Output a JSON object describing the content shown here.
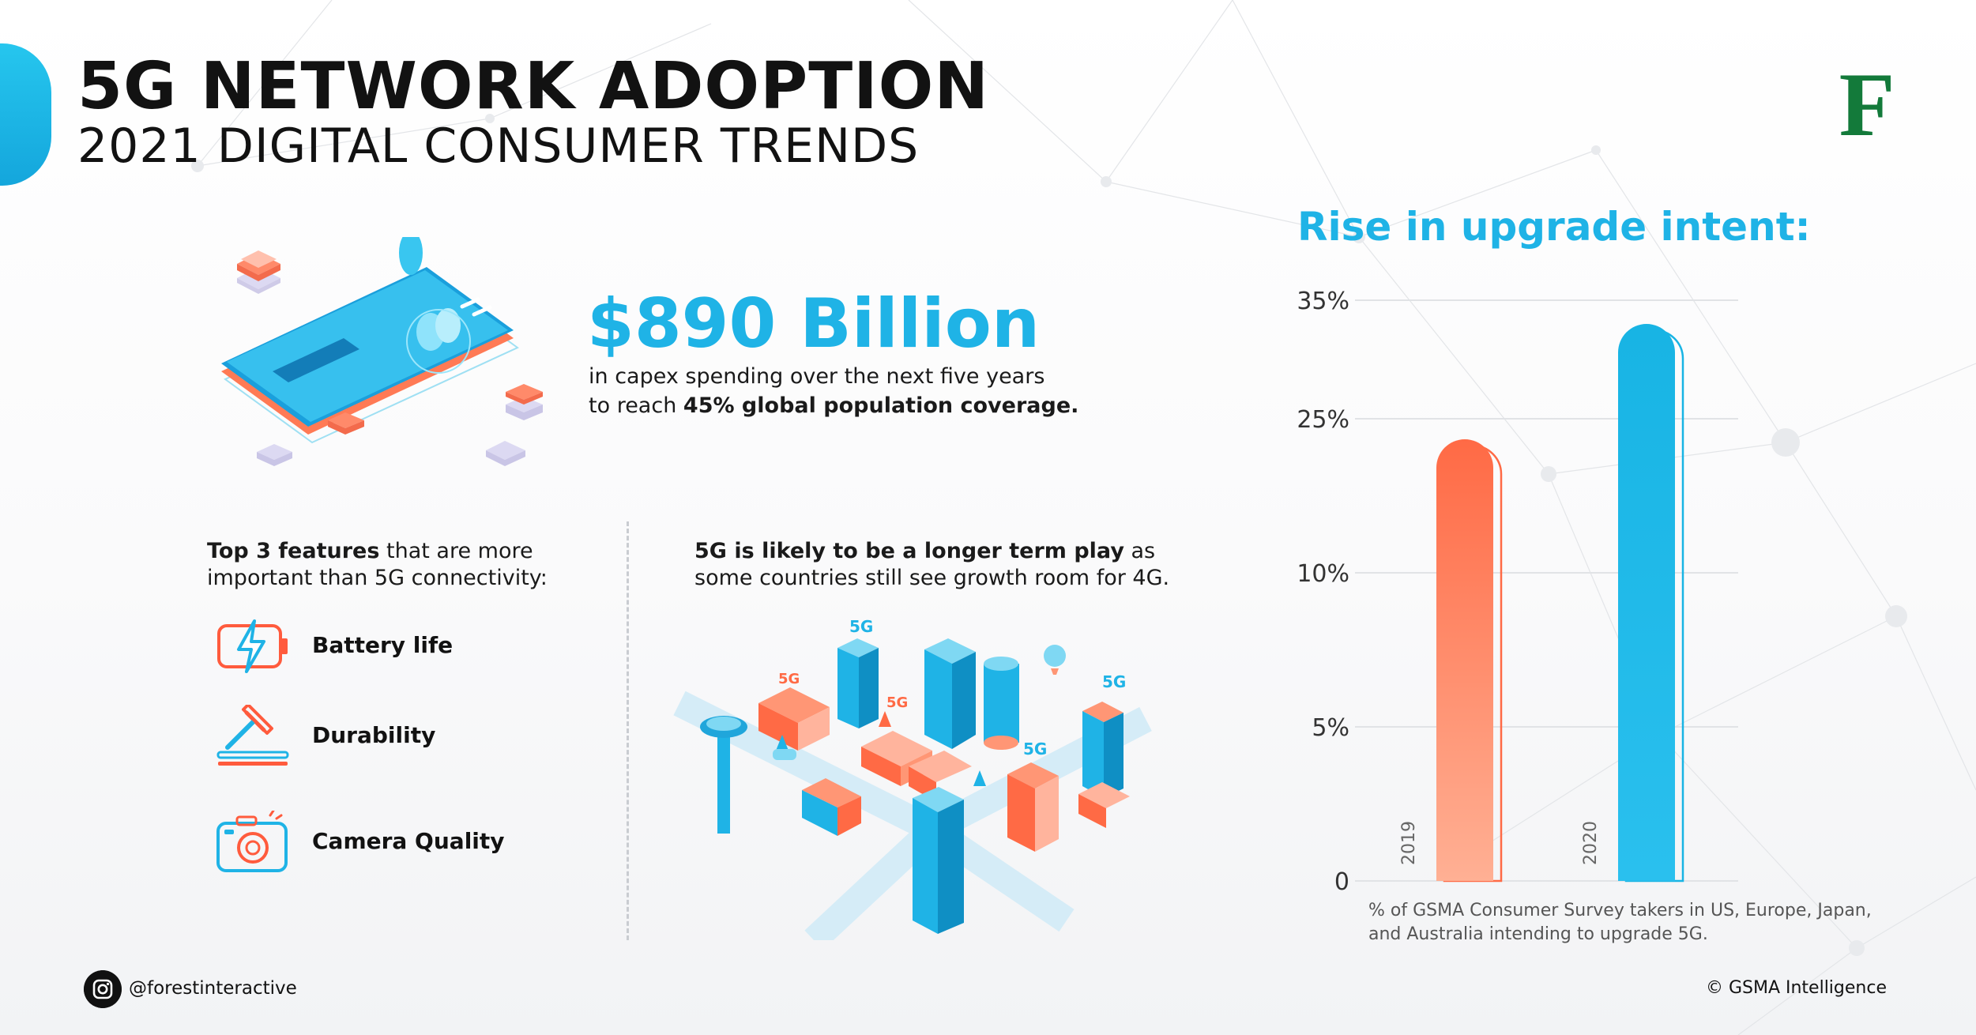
{
  "header": {
    "title": "5G NETWORK ADOPTION",
    "subtitle": "2021 DIGITAL CONSUMER TRENDS",
    "logo_letter": "F"
  },
  "capex": {
    "amount": "$890 Billion",
    "line1": "in capex spending over the next five years",
    "line2_prefix": "to reach ",
    "line2_bold": "45% global population coverage."
  },
  "features": {
    "heading_bold": "Top 3 features",
    "heading_rest_1": " that are more",
    "heading_line2": "important than 5G connectivity:",
    "items": [
      {
        "label": "Battery life",
        "icon": "battery-charging-icon"
      },
      {
        "label": "Durability",
        "icon": "hammer-icon"
      },
      {
        "label": "Camera Quality",
        "icon": "camera-icon"
      }
    ]
  },
  "longterm": {
    "bold": "5G is likely to be a longer term play",
    "rest_1": " as",
    "line2": "some countries still see growth room for 4G."
  },
  "city_labels": [
    "5G",
    "5G",
    "5G",
    "5G",
    "5G"
  ],
  "chart_data": {
    "type": "bar",
    "title": "Rise in upgrade intent:",
    "categories": [
      "2019",
      "2020"
    ],
    "values": [
      23,
      33
    ],
    "y_tick_labels": [
      "0",
      "5%",
      "10%",
      "25%",
      "35%"
    ],
    "ylim": [
      0,
      35
    ],
    "colors": [
      "#ff6a45",
      "#18b4e4"
    ],
    "caption": "% of GSMA Consumer Survey takers in US, Europe, Japan, and Australia intending to upgrade 5G."
  },
  "footer": {
    "social_handle": "@forestinteractive",
    "source": "© GSMA Intelligence"
  },
  "colors": {
    "accent_blue": "#1fb3e6",
    "accent_orange": "#ff6a45",
    "brand_green": "#137a3a"
  }
}
